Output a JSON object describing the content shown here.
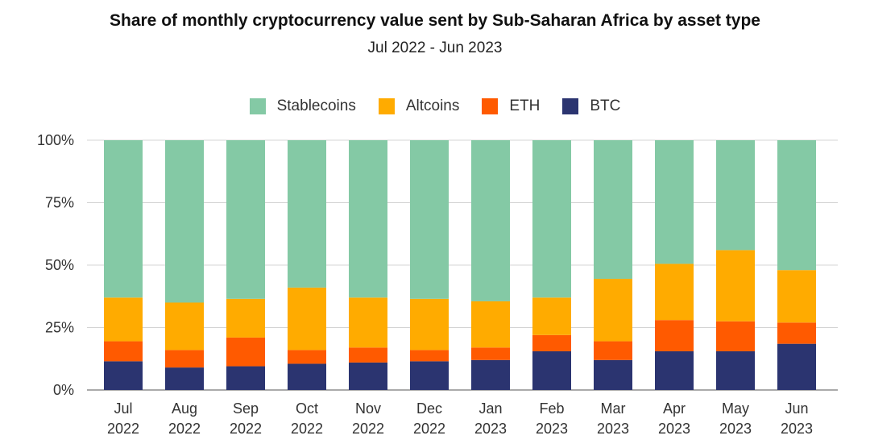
{
  "chart_data": {
    "type": "bar",
    "stacked": true,
    "title": "Share of monthly cryptocurrency value sent by Sub-Saharan Africa by asset type",
    "subtitle": "Jul 2022 - Jun 2023",
    "categories": [
      [
        "Jul",
        "2022"
      ],
      [
        "Aug",
        "2022"
      ],
      [
        "Sep",
        "2022"
      ],
      [
        "Oct",
        "2022"
      ],
      [
        "Nov",
        "2022"
      ],
      [
        "Dec",
        "2022"
      ],
      [
        "Jan",
        "2023"
      ],
      [
        "Feb",
        "2023"
      ],
      [
        "Mar",
        "2023"
      ],
      [
        "Apr",
        "2023"
      ],
      [
        "May",
        "2023"
      ],
      [
        "Jun",
        "2023"
      ]
    ],
    "series": [
      {
        "name": "BTC",
        "color": "#2b3470",
        "values": [
          11.5,
          9,
          9.5,
          10.5,
          11,
          11.5,
          12,
          15.5,
          12,
          15.5,
          15.5,
          18.5
        ]
      },
      {
        "name": "ETH",
        "color": "#ff5a00",
        "values": [
          8,
          7,
          11.5,
          5.5,
          6,
          4.5,
          5,
          6.5,
          7.5,
          12.5,
          12,
          8.5
        ]
      },
      {
        "name": "Altcoins",
        "color": "#ffab00",
        "values": [
          17.5,
          19,
          15.5,
          25,
          20,
          20.5,
          18.5,
          15,
          25,
          22.5,
          28.5,
          21
        ]
      },
      {
        "name": "Stablecoins",
        "color": "#84c9a5",
        "values": [
          63,
          65,
          63.5,
          59,
          63,
          63.5,
          64.5,
          63,
          55.5,
          49.5,
          44,
          52
        ]
      }
    ],
    "legend_order": [
      "Stablecoins",
      "Altcoins",
      "ETH",
      "BTC"
    ],
    "y_ticks": [
      "0%",
      "25%",
      "50%",
      "75%",
      "100%"
    ],
    "ylim": [
      0,
      100
    ],
    "grid": true,
    "legend_position": "top-center"
  }
}
